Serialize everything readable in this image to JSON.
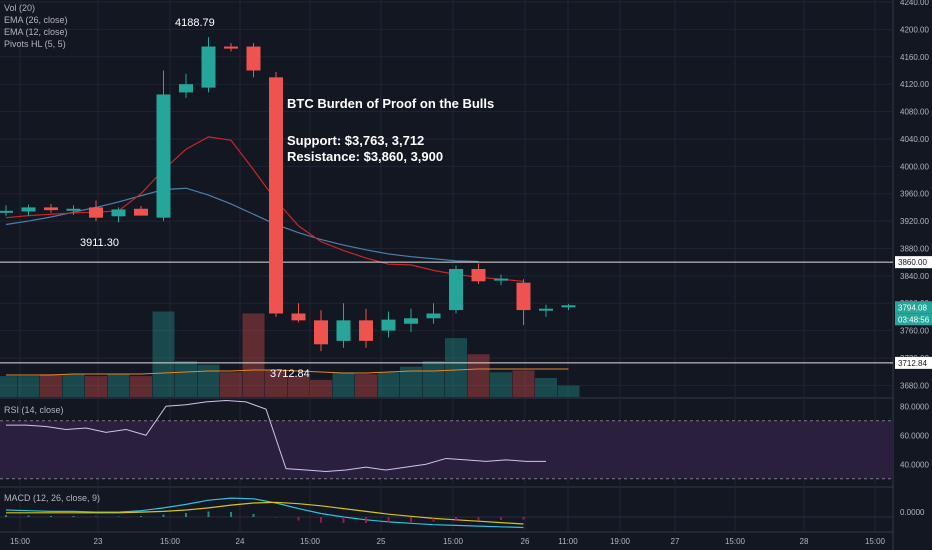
{
  "colors": {
    "background": "#131722",
    "grid": "#1f2433",
    "up": "#26a69a",
    "down": "#ef5350",
    "ema26": "#4f7fa8",
    "ema12": "#c62828",
    "rsi": "#d1c4e9",
    "rsi_band": "#2a1f3d",
    "macd": "#2ec0e0",
    "signal": "#d4c31a",
    "vol_ma": "#e08a2a",
    "text": "#b2b5be"
  },
  "indicators": {
    "vol": "Vol (20)",
    "ema26": "EMA (26, close)",
    "ema12": "EMA (12, close)",
    "pivots": "Pivots HL (5, 5)",
    "rsi": "RSI (14, close)",
    "macd": "MACD (12, 26, close, 9)"
  },
  "annotation": {
    "title": "BTC Burden of Proof on the Bulls",
    "support": "Support: $3,763, 3,712",
    "resistance": "Resistance: $3,860, 3,900"
  },
  "pivots": {
    "high": "4188.79",
    "low_left": "3911.30",
    "low_right": "3712.84"
  },
  "price_tags": {
    "level_1": "3860.00",
    "level_2": "3712.84",
    "last_price": "3794.08",
    "countdown": "03:48:56"
  },
  "chart_data": [
    {
      "type": "candlestick",
      "title": "",
      "y_axis_ticks": [
        "4240.00",
        "4200.00",
        "4160.00",
        "4120.00",
        "4080.00",
        "4040.00",
        "4000.00",
        "3960.00",
        "3920.00",
        "3880.00",
        "3840.00",
        "3800.00",
        "3760.00",
        "3720.00",
        "3680.00"
      ],
      "ylim": [
        3663,
        4243
      ],
      "x_axis_ticks": [
        "15:00",
        "23",
        "15:00",
        "24",
        "15:00",
        "25",
        "15:00",
        "26",
        "11:00",
        "19:00",
        "27",
        "15:00",
        "28",
        "15:00"
      ],
      "candles": [
        {
          "o": 3935,
          "h": 3943,
          "l": 3927,
          "c": 3935
        },
        {
          "o": 3934,
          "h": 3944,
          "l": 3928,
          "c": 3940
        },
        {
          "o": 3940,
          "h": 3945,
          "l": 3932,
          "c": 3936
        },
        {
          "o": 3937,
          "h": 3943,
          "l": 3929,
          "c": 3938
        },
        {
          "o": 3940,
          "h": 3950,
          "l": 3920,
          "c": 3925
        },
        {
          "o": 3927,
          "h": 3940,
          "l": 3918,
          "c": 3937
        },
        {
          "o": 3938,
          "h": 3942,
          "l": 3928,
          "c": 3928
        },
        {
          "o": 3925,
          "h": 4140,
          "l": 3920,
          "c": 4105
        },
        {
          "o": 4108,
          "h": 4135,
          "l": 4100,
          "c": 4120
        },
        {
          "o": 4115,
          "h": 4188.79,
          "l": 4108,
          "c": 4175
        },
        {
          "o": 4175,
          "h": 4180,
          "l": 4168,
          "c": 4172
        },
        {
          "o": 4175,
          "h": 4180,
          "l": 4130,
          "c": 4140
        },
        {
          "o": 4130,
          "h": 4138,
          "l": 3780,
          "c": 3785
        },
        {
          "o": 3785,
          "h": 3800,
          "l": 3772,
          "c": 3775
        },
        {
          "o": 3775,
          "h": 3790,
          "l": 3730,
          "c": 3740
        },
        {
          "o": 3745,
          "h": 3800,
          "l": 3735,
          "c": 3775
        },
        {
          "o": 3775,
          "h": 3792,
          "l": 3735,
          "c": 3745
        },
        {
          "o": 3760,
          "h": 3788,
          "l": 3750,
          "c": 3776
        },
        {
          "o": 3770,
          "h": 3792,
          "l": 3758,
          "c": 3778
        },
        {
          "o": 3778,
          "h": 3800,
          "l": 3770,
          "c": 3785
        },
        {
          "o": 3790,
          "h": 3855,
          "l": 3785,
          "c": 3850
        },
        {
          "o": 3850,
          "h": 3858,
          "l": 3828,
          "c": 3832
        },
        {
          "o": 3833,
          "h": 3842,
          "l": 3826,
          "c": 3836
        },
        {
          "o": 3830,
          "h": 3835,
          "l": 3768,
          "c": 3790
        },
        {
          "o": 3790,
          "h": 3798,
          "l": 3780,
          "c": 3792
        },
        {
          "o": 3794,
          "h": 3799,
          "l": 3790,
          "c": 3797
        }
      ],
      "volume": [
        22,
        22,
        24,
        24,
        22,
        24,
        22,
        90,
        38,
        34,
        26,
        88,
        28,
        22,
        18,
        26,
        24,
        26,
        32,
        38,
        62,
        45,
        26,
        28,
        20,
        12
      ],
      "ema26": [
        3915,
        3920,
        3926,
        3933,
        3940,
        3948,
        3957,
        3966,
        3968,
        3958,
        3945,
        3930,
        3915,
        3903,
        3893,
        3885,
        3878,
        3872,
        3868,
        3865,
        3862,
        3861
      ],
      "ema12": [
        3925,
        3928,
        3930,
        3932,
        3933,
        3935,
        3960,
        3995,
        4025,
        4043,
        4038,
        3995,
        3950,
        3913,
        3890,
        3877,
        3866,
        3857,
        3856,
        3848,
        3842,
        3838,
        3835,
        3832
      ],
      "horizontal_levels": [
        3860.0,
        3712.84
      ],
      "last_price": 3794.08
    },
    {
      "type": "line",
      "title": "RSI (14, close)",
      "y_axis_ticks": [
        "80.0000",
        "60.0000",
        "40.0000"
      ],
      "ylim": [
        25,
        85
      ],
      "bands": [
        30,
        70
      ],
      "values": [
        67,
        67,
        66,
        64,
        65,
        62,
        64,
        60,
        80,
        81,
        83,
        84,
        83,
        78,
        37,
        36,
        35,
        36,
        38,
        36,
        38,
        40,
        44,
        43,
        42,
        43,
        42,
        42
      ]
    },
    {
      "type": "line",
      "title": "MACD (12, 26, close, 9)",
      "y_axis_ticks": [
        "0.0000"
      ],
      "series": [
        {
          "values": [
            10,
            9,
            8,
            8,
            7,
            7,
            9,
            13,
            18,
            24,
            27,
            26,
            20,
            12,
            5,
            0,
            -4,
            -7,
            -9,
            -11,
            -12,
            -13,
            -14,
            -15
          ]
        },
        {
          "values": [
            6,
            6,
            6,
            6,
            6,
            6,
            7,
            8,
            10,
            13,
            17,
            20,
            21,
            19,
            16,
            12,
            8,
            4,
            1,
            -2,
            -4,
            -6,
            -8,
            -10
          ]
        }
      ]
    }
  ]
}
